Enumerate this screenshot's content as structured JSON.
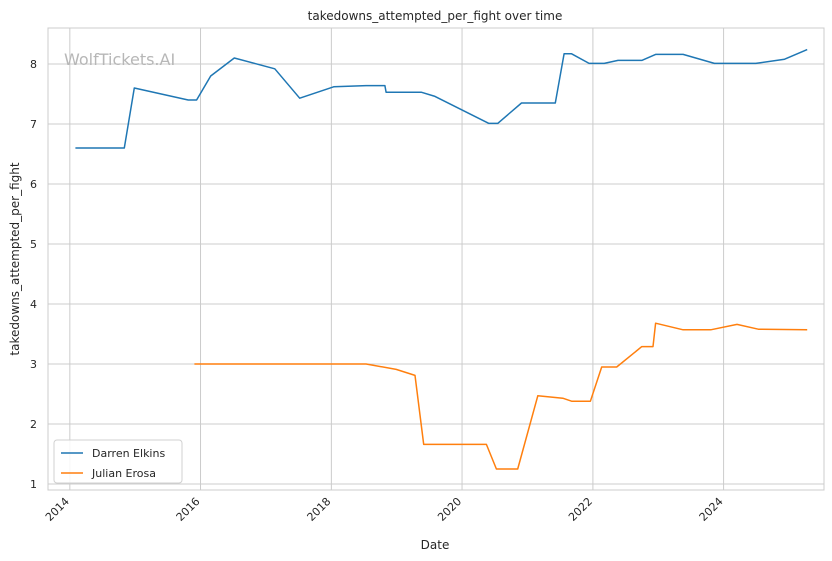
{
  "watermark": "WolfTickets.AI",
  "chart_data": {
    "type": "line",
    "title": "takedowns_attempted_per_fight over time",
    "xlabel": "Date",
    "ylabel": "takedowns_attempted_per_fight",
    "xlim": [
      "2013-09-01",
      "2025-07-15"
    ],
    "ylim": [
      0.9,
      8.6
    ],
    "x_ticks": [
      "2014-01-01",
      "2016-01-01",
      "2018-01-01",
      "2020-01-01",
      "2022-01-01",
      "2024-01-01"
    ],
    "x_tick_labels": [
      "2014",
      "2016",
      "2018",
      "2020",
      "2022",
      "2024"
    ],
    "y_ticks": [
      1,
      2,
      3,
      4,
      5,
      6,
      7,
      8
    ],
    "y_tick_labels": [
      "1",
      "2",
      "3",
      "4",
      "5",
      "6",
      "7",
      "8"
    ],
    "grid": true,
    "legend_position": "lower-left",
    "series": [
      {
        "name": "Darren Elkins",
        "color": "#1f77b4",
        "points": [
          [
            "2014-02-01",
            6.6
          ],
          [
            "2014-11-01",
            6.6
          ],
          [
            "2014-12-27",
            7.6
          ],
          [
            "2015-10-24",
            7.4
          ],
          [
            "2015-12-10",
            7.4
          ],
          [
            "2016-02-27",
            7.8
          ],
          [
            "2016-07-08",
            8.1
          ],
          [
            "2017-02-19",
            7.92
          ],
          [
            "2017-07-08",
            7.43
          ],
          [
            "2018-01-14",
            7.62
          ],
          [
            "2018-07-14",
            7.64
          ],
          [
            "2018-10-27",
            7.64
          ],
          [
            "2018-11-03",
            7.53
          ],
          [
            "2019-05-18",
            7.53
          ],
          [
            "2019-08-03",
            7.46
          ],
          [
            "2020-05-30",
            7.01
          ],
          [
            "2020-07-18",
            7.01
          ],
          [
            "2020-11-28",
            7.35
          ],
          [
            "2021-06-05",
            7.35
          ],
          [
            "2021-07-24",
            8.17
          ],
          [
            "2021-09-04",
            8.17
          ],
          [
            "2021-12-11",
            8.01
          ],
          [
            "2022-03-05",
            8.01
          ],
          [
            "2022-05-21",
            8.06
          ],
          [
            "2022-10-01",
            8.06
          ],
          [
            "2022-12-17",
            8.16
          ],
          [
            "2023-05-20",
            8.16
          ],
          [
            "2023-11-11",
            8.01
          ],
          [
            "2024-06-29",
            8.01
          ],
          [
            "2024-12-07",
            8.08
          ],
          [
            "2025-04-12",
            8.24
          ]
        ]
      },
      {
        "name": "Julian Erosa",
        "color": "#ff7f0e",
        "points": [
          [
            "2015-11-28",
            3.0
          ],
          [
            "2018-07-14",
            3.0
          ],
          [
            "2018-12-29",
            2.91
          ],
          [
            "2019-04-13",
            2.81
          ],
          [
            "2019-06-01",
            1.66
          ],
          [
            "2020-05-16",
            1.66
          ],
          [
            "2020-07-11",
            1.25
          ],
          [
            "2020-11-07",
            1.25
          ],
          [
            "2021-02-27",
            2.47
          ],
          [
            "2021-07-17",
            2.43
          ],
          [
            "2021-09-04",
            2.38
          ],
          [
            "2021-12-18",
            2.38
          ],
          [
            "2022-02-19",
            2.95
          ],
          [
            "2022-05-14",
            2.95
          ],
          [
            "2022-10-01",
            3.29
          ],
          [
            "2022-12-03",
            3.29
          ],
          [
            "2022-12-17",
            3.68
          ],
          [
            "2023-05-20",
            3.57
          ],
          [
            "2023-10-21",
            3.57
          ],
          [
            "2024-03-16",
            3.66
          ],
          [
            "2024-07-13",
            3.58
          ],
          [
            "2025-04-12",
            3.57
          ]
        ]
      }
    ]
  }
}
